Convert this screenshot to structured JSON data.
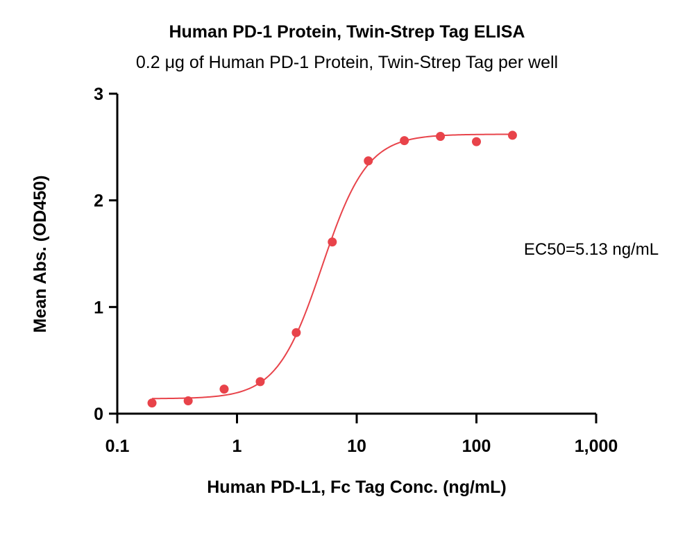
{
  "chart_data": {
    "type": "scatter",
    "title": "Human PD-1 Protein, Twin-Strep Tag ELISA",
    "subtitle": "0.2 μg of Human PD-1 Protein, Twin-Strep Tag per well",
    "xlabel": "Human PD-L1, Fc Tag Conc. (ng/mL)",
    "ylabel": "Mean Abs. (OD450)",
    "x_scale": "log",
    "xlim": [
      0.1,
      1000
    ],
    "ylim": [
      0,
      3
    ],
    "x_ticks": [
      0.1,
      1,
      10,
      100,
      1000
    ],
    "x_tick_labels": [
      "0.1",
      "1",
      "10",
      "100",
      "1,000"
    ],
    "y_ticks": [
      0,
      1,
      2,
      3
    ],
    "y_tick_labels": [
      "0",
      "1",
      "2",
      "3"
    ],
    "grid": false,
    "color": "#e8434a",
    "series": [
      {
        "x": [
          0.195,
          0.391,
          0.781,
          1.563,
          3.125,
          6.25,
          12.5,
          25,
          50,
          100,
          200
        ],
        "y": [
          0.1,
          0.12,
          0.23,
          0.3,
          0.76,
          1.61,
          2.37,
          2.56,
          2.6,
          2.55,
          2.61
        ]
      }
    ],
    "fit": {
      "model": "4PL",
      "bottom": 0.14,
      "top": 2.62,
      "ec50": 5.13,
      "hill": 2.3
    },
    "annotations": [
      {
        "text": "EC50=5.13 ng/mL"
      }
    ]
  }
}
